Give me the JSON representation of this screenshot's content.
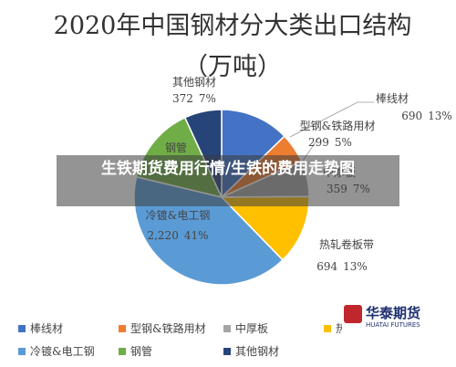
{
  "chart_data": {
    "type": "pie",
    "title": "2020年中国钢材分大类出口结构（万吨）",
    "categories": [
      "棒线材",
      "型钢&铁路用材",
      "中厚板",
      "热轧卷板带",
      "冷镀&电工钢",
      "钢管",
      "其他钢材"
    ],
    "values": [
      690,
      299,
      359,
      694,
      2220,
      780,
      372
    ],
    "value_labels": [
      "690",
      "299",
      "359",
      "694",
      "2,220",
      null,
      "372"
    ],
    "percent_labels": [
      "13%",
      "5%",
      "7%",
      "13%",
      "41%",
      null,
      "7%"
    ],
    "colors": [
      "#4472c4",
      "#ed7d31",
      "#a5a5a5",
      "#ffc000",
      "#5b9bd5",
      "#70ad47",
      "#264478"
    ],
    "legend": "bottom"
  },
  "overlay_banner": "生铁期货费用行情/生铁的费用走势图",
  "watermark": {
    "name": "华泰期货",
    "subtitle": "HUATAI FUTURES"
  }
}
